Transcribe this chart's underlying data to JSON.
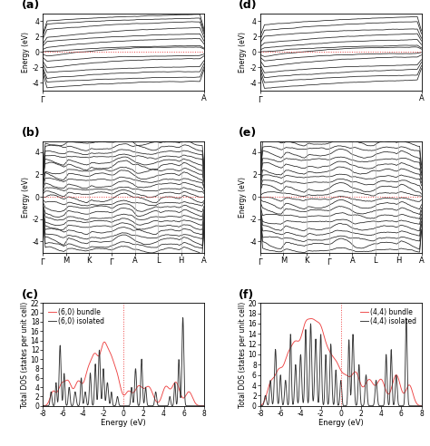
{
  "fig_width": 4.74,
  "fig_height": 4.92,
  "dpi": 100,
  "band_color": "#222222",
  "fermi_color": "#ee4444",
  "fermi_linewidth": 0.7,
  "vline_color": "#bbbbbb",
  "vline_linewidth": 0.5,
  "band_linewidth": 0.55,
  "ylim_band": [
    -5,
    5
  ],
  "yticks_band": [
    -4,
    -2,
    0,
    2,
    4
  ],
  "ylabel_band": "Energy (eV)",
  "dos_xlabel": "Energy (eV)",
  "dos_ylabel": "Total DOS (states per unit cell)",
  "dos_xlim": [
    -8,
    8
  ],
  "dos_ylim_c": [
    0,
    22
  ],
  "dos_ylim_f": [
    0,
    20
  ],
  "dos_yticks_c": [
    0,
    2,
    4,
    6,
    8,
    10,
    12,
    14,
    16,
    18,
    20,
    22
  ],
  "dos_yticks_f": [
    0,
    2,
    4,
    6,
    8,
    10,
    12,
    14,
    16,
    18,
    20
  ],
  "dos_xticks": [
    -8,
    -6,
    -4,
    -2,
    0,
    2,
    4,
    6,
    8
  ],
  "legend_c": [
    "(6,0) isolated",
    "(6,0) bundle"
  ],
  "legend_f": [
    "(4,4) isolated",
    "(4,4) bundle"
  ],
  "dos_iso_color": "#333333",
  "dos_bnd_color": "#ee4444",
  "kpoint_labels_1d": [
    "Γ",
    "A"
  ],
  "kpoint_labels_3d": [
    "Γ",
    "M",
    "K",
    "Γ",
    "A",
    "L",
    "H",
    "A"
  ],
  "axis_linewidth": 0.6,
  "tick_fontsize": 5.5,
  "kpoint_fontsize": 6,
  "ylabel_fontsize": 5.5,
  "xlabel_fontsize": 6,
  "legend_fontsize": 5.5,
  "label_fontsize": 9
}
